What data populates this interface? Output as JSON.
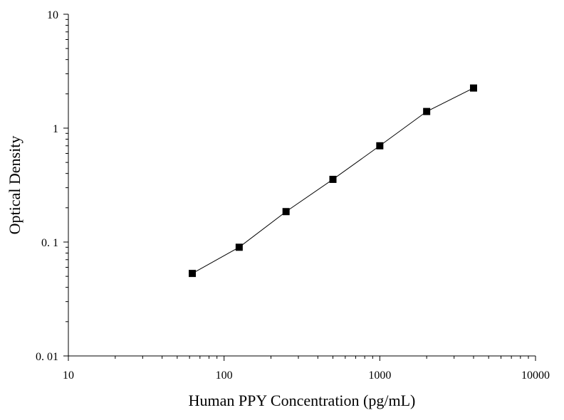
{
  "chart_data": {
    "type": "scatter",
    "xlabel": "Human PPY Concentration (pg/mL)",
    "ylabel": "Optical Density",
    "x_scale": "log",
    "y_scale": "log",
    "xlim": [
      10,
      10000
    ],
    "ylim": [
      0.01,
      10
    ],
    "x_ticks": [
      {
        "value": 10,
        "label": "10"
      },
      {
        "value": 100,
        "label": "100"
      },
      {
        "value": 1000,
        "label": "1000"
      },
      {
        "value": 10000,
        "label": "10000"
      }
    ],
    "y_ticks": [
      {
        "value": 0.01,
        "label": "0. 01"
      },
      {
        "value": 0.1,
        "label": "0. 1"
      },
      {
        "value": 1,
        "label": "1"
      },
      {
        "value": 10,
        "label": "10"
      }
    ],
    "grid": false,
    "legend": "none",
    "marker": "square",
    "line_connecting_points": true,
    "color": "#000000",
    "series": [
      {
        "x": [
          62.5,
          125,
          250,
          500,
          1000,
          2000,
          4000
        ],
        "y": [
          0.053,
          0.09,
          0.185,
          0.355,
          0.7,
          1.4,
          2.25
        ]
      }
    ]
  }
}
